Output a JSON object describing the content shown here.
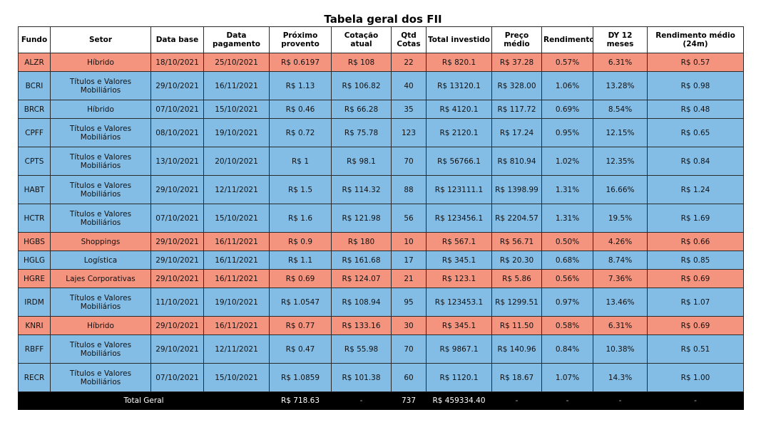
{
  "title": "Tabela geral dos FII",
  "headers": [
    "Fundo",
    "Setor",
    "Data base",
    "Data pagamento",
    "Próximo provento",
    "Cotação atual",
    "Qtd Cotas",
    "Total investido",
    "Preço médio",
    "Rendimento",
    "DY 12 meses",
    "Rendimento médio (24m)"
  ],
  "rows": [
    {
      "fundo": "ALZR",
      "setor": "Híbrido",
      "data_base": "18/10/2021",
      "data_pagamento": "25/10/2021",
      "proximo_provento": "R$ 0.6197",
      "cotacao_atual": "R$ 108",
      "qtd_cotas": "22",
      "total_investido": "R$ 820.1",
      "preco_medio": "R$ 37.28",
      "rendimento": "0.57%",
      "dy12": "6.31%",
      "rend_medio": "R$ 0.57",
      "color": "#f4937e"
    },
    {
      "fundo": "BCRI",
      "setor": "Títulos e Valores Mobiliários",
      "data_base": "29/10/2021",
      "data_pagamento": "16/11/2021",
      "proximo_provento": "R$ 1.13",
      "cotacao_atual": "R$ 106.82",
      "qtd_cotas": "40",
      "total_investido": "R$ 13120.1",
      "preco_medio": "R$ 328.00",
      "rendimento": "1.06%",
      "dy12": "13.28%",
      "rend_medio": "R$ 0.98",
      "color": "#83bde6"
    },
    {
      "fundo": "BRCR",
      "setor": "Híbrido",
      "data_base": "07/10/2021",
      "data_pagamento": "15/10/2021",
      "proximo_provento": "R$ 0.46",
      "cotacao_atual": "R$ 66.28",
      "qtd_cotas": "35",
      "total_investido": "R$ 4120.1",
      "preco_medio": "R$ 117.72",
      "rendimento": "0.69%",
      "dy12": "8.54%",
      "rend_medio": "R$ 0.48",
      "color": "#83bde6"
    },
    {
      "fundo": "CPFF",
      "setor": "Títulos e Valores Mobiliários",
      "data_base": "08/10/2021",
      "data_pagamento": "19/10/2021",
      "proximo_provento": "R$ 0.72",
      "cotacao_atual": "R$ 75.78",
      "qtd_cotas": "123",
      "total_investido": "R$ 2120.1",
      "preco_medio": "R$ 17.24",
      "rendimento": "0.95%",
      "dy12": "12.15%",
      "rend_medio": "R$ 0.65",
      "color": "#83bde6"
    },
    {
      "fundo": "CPTS",
      "setor": "Títulos e Valores Mobiliários",
      "data_base": "13/10/2021",
      "data_pagamento": "20/10/2021",
      "proximo_provento": "R$ 1",
      "cotacao_atual": "R$ 98.1",
      "qtd_cotas": "70",
      "total_investido": "R$ 56766.1",
      "preco_medio": "R$ 810.94",
      "rendimento": "1.02%",
      "dy12": "12.35%",
      "rend_medio": "R$ 0.84",
      "color": "#83bde6"
    },
    {
      "fundo": "HABT",
      "setor": "Títulos e Valores Mobiliários",
      "data_base": "29/10/2021",
      "data_pagamento": "12/11/2021",
      "proximo_provento": "R$ 1.5",
      "cotacao_atual": "R$ 114.32",
      "qtd_cotas": "88",
      "total_investido": "R$ 123111.1",
      "preco_medio": "R$ 1398.99",
      "rendimento": "1.31%",
      "dy12": "16.66%",
      "rend_medio": "R$ 1.24",
      "color": "#83bde6"
    },
    {
      "fundo": "HCTR",
      "setor": "Títulos e Valores Mobiliários",
      "data_base": "07/10/2021",
      "data_pagamento": "15/10/2021",
      "proximo_provento": "R$ 1.6",
      "cotacao_atual": "R$ 121.98",
      "qtd_cotas": "56",
      "total_investido": "R$ 123456.1",
      "preco_medio": "R$ 2204.57",
      "rendimento": "1.31%",
      "dy12": "19.5%",
      "rend_medio": "R$ 1.69",
      "color": "#83bde6"
    },
    {
      "fundo": "HGBS",
      "setor": "Shoppings",
      "data_base": "29/10/2021",
      "data_pagamento": "16/11/2021",
      "proximo_provento": "R$ 0.9",
      "cotacao_atual": "R$ 180",
      "qtd_cotas": "10",
      "total_investido": "R$ 567.1",
      "preco_medio": "R$ 56.71",
      "rendimento": "0.50%",
      "dy12": "4.26%",
      "rend_medio": "R$ 0.66",
      "color": "#f4937e"
    },
    {
      "fundo": "HGLG",
      "setor": "Logística",
      "data_base": "29/10/2021",
      "data_pagamento": "16/11/2021",
      "proximo_provento": "R$ 1.1",
      "cotacao_atual": "R$ 161.68",
      "qtd_cotas": "17",
      "total_investido": "R$ 345.1",
      "preco_medio": "R$ 20.30",
      "rendimento": "0.68%",
      "dy12": "8.74%",
      "rend_medio": "R$ 0.85",
      "color": "#83bde6"
    },
    {
      "fundo": "HGRE",
      "setor": "Lajes Corporativas",
      "data_base": "29/10/2021",
      "data_pagamento": "16/11/2021",
      "proximo_provento": "R$ 0.69",
      "cotacao_atual": "R$ 124.07",
      "qtd_cotas": "21",
      "total_investido": "R$ 123.1",
      "preco_medio": "R$ 5.86",
      "rendimento": "0.56%",
      "dy12": "7.36%",
      "rend_medio": "R$ 0.69",
      "color": "#f4937e"
    },
    {
      "fundo": "IRDM",
      "setor": "Títulos e Valores Mobiliários",
      "data_base": "11/10/2021",
      "data_pagamento": "19/10/2021",
      "proximo_provento": "R$ 1.0547",
      "cotacao_atual": "R$ 108.94",
      "qtd_cotas": "95",
      "total_investido": "R$ 123453.1",
      "preco_medio": "R$ 1299.51",
      "rendimento": "0.97%",
      "dy12": "13.46%",
      "rend_medio": "R$ 1.07",
      "color": "#83bde6"
    },
    {
      "fundo": "KNRI",
      "setor": "Híbrido",
      "data_base": "29/10/2021",
      "data_pagamento": "16/11/2021",
      "proximo_provento": "R$ 0.77",
      "cotacao_atual": "R$ 133.16",
      "qtd_cotas": "30",
      "total_investido": "R$ 345.1",
      "preco_medio": "R$ 11.50",
      "rendimento": "0.58%",
      "dy12": "6.31%",
      "rend_medio": "R$ 0.69",
      "color": "#f4937e"
    },
    {
      "fundo": "RBFF",
      "setor": "Títulos e Valores Mobiliários",
      "data_base": "29/10/2021",
      "data_pagamento": "12/11/2021",
      "proximo_provento": "R$ 0.47",
      "cotacao_atual": "R$ 55.98",
      "qtd_cotas": "70",
      "total_investido": "R$ 9867.1",
      "preco_medio": "R$ 140.96",
      "rendimento": "0.84%",
      "dy12": "10.38%",
      "rend_medio": "R$ 0.51",
      "color": "#83bde6"
    },
    {
      "fundo": "RECR",
      "setor": "Títulos e Valores Mobiliários",
      "data_base": "07/10/2021",
      "data_pagamento": "15/10/2021",
      "proximo_provento": "R$ 1.0859",
      "cotacao_atual": "R$ 101.38",
      "qtd_cotas": "60",
      "total_investido": "R$ 1120.1",
      "preco_medio": "R$ 18.67",
      "rendimento": "1.07%",
      "dy12": "14.3%",
      "rend_medio": "R$ 1.00",
      "color": "#83bde6"
    }
  ],
  "total": {
    "label": "Total Geral",
    "proximo_provento": "R$ 718.63",
    "cotacao_atual": "-",
    "qtd_cotas": "737",
    "total_investido": "R$ 459334.40",
    "preco_medio": "-",
    "rendimento": "-",
    "dy12": "-",
    "rend_medio": "-"
  }
}
